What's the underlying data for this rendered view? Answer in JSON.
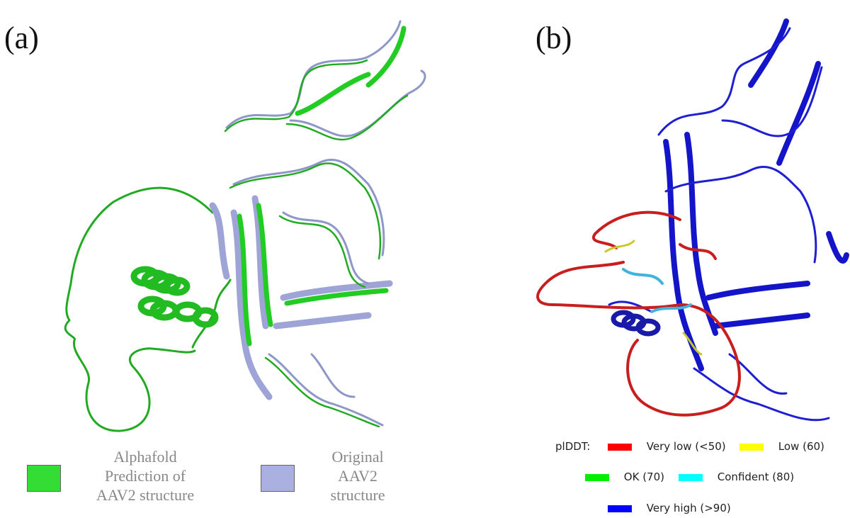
{
  "panels": {
    "a": {
      "label": "(a)",
      "legend": [
        {
          "lines": [
            "Alphafold",
            "Prediction of",
            "AAV2 structure"
          ],
          "color": "#33dd33"
        },
        {
          "lines": [
            "Original",
            "AAV2",
            "structure"
          ],
          "color": "#aab0e0"
        }
      ]
    },
    "b": {
      "label": "(b)",
      "legend_title": "plDDT:",
      "legend": [
        {
          "label": "Very low (<50)",
          "color": "#ff0000"
        },
        {
          "label": "Low (60)",
          "color": "#ffff00"
        },
        {
          "label": "OK (70)",
          "color": "#00ee00"
        },
        {
          "label": "Confident (80)",
          "color": "#00ffff"
        },
        {
          "label": "Very high (>90)",
          "color": "#0000ff"
        }
      ]
    }
  }
}
